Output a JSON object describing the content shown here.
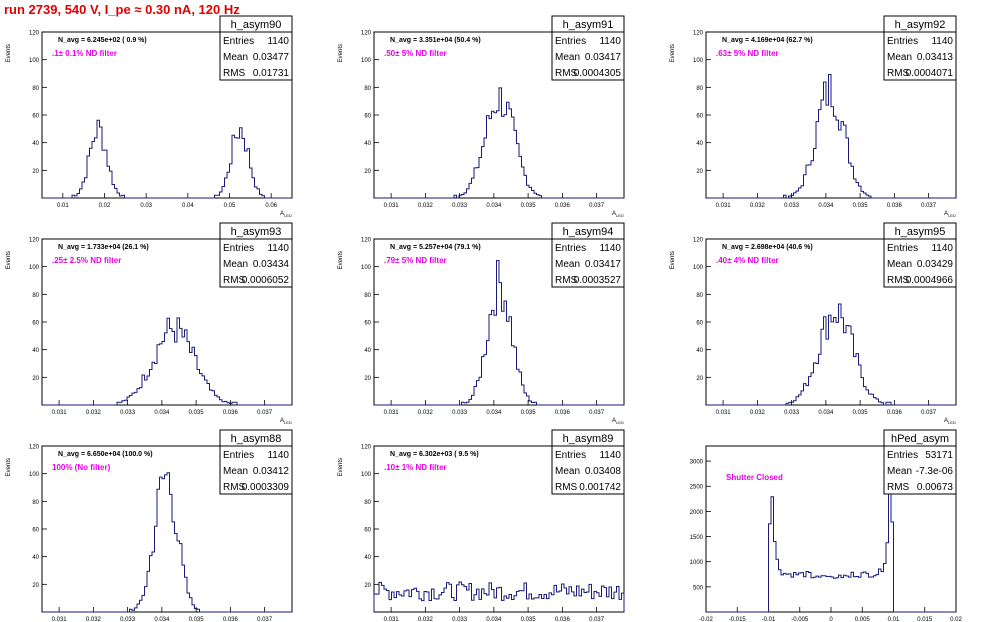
{
  "canvas_title": "run 2739,   540 V, I_pe ≈ 0.30 nA, 120 Hz",
  "stats_labels": {
    "entries": "Entries",
    "mean": "Mean",
    "rms": "RMS"
  },
  "colors": {
    "hist": "#1a1a7a",
    "annotation": "#e600e6",
    "title": "#e00000"
  },
  "chart_data": [
    {
      "type": "histogram",
      "name": "h_asym90",
      "navg": "N_avg = 6.245e+02 ( 0.9 %)",
      "filter": ".1± 0.1% ND filter",
      "stats": {
        "entries": "1140",
        "mean": "0.03477",
        "rms": "0.01731"
      },
      "ylabel": "Events",
      "xlabel": "A_LED",
      "xlim": [
        0.005,
        0.065
      ],
      "ylim": [
        0,
        120
      ],
      "xticks": [
        0.01,
        0.02,
        0.03,
        0.04,
        0.05,
        0.06
      ],
      "xticklabels": [
        "0.01",
        "0.02",
        "0.03",
        "0.04",
        "0.05",
        "0.06"
      ],
      "yticks": [
        20,
        40,
        60,
        80,
        100,
        120
      ],
      "peaks": [
        {
          "mean": 0.0185,
          "sigma": 0.0021,
          "height": 50
        },
        {
          "mean": 0.0525,
          "sigma": 0.0021,
          "height": 50
        }
      ]
    },
    {
      "type": "histogram",
      "name": "h_asym91",
      "navg": "N_avg = 3.351e+04 (50.4 %)",
      "filter": ".50± 5% ND filter",
      "stats": {
        "entries": "1140",
        "mean": "0.03417",
        "rms": "0.0004305"
      },
      "ylabel": "Events",
      "xlabel": "A_LED",
      "xlim": [
        0.0305,
        0.0378
      ],
      "ylim": [
        0,
        120
      ],
      "xticks": [
        0.031,
        0.032,
        0.033,
        0.034,
        0.035,
        0.036,
        0.037
      ],
      "xticklabels": [
        "0.031",
        "0.032",
        "0.033",
        "0.034",
        "0.035",
        "0.036",
        "0.037"
      ],
      "yticks": [
        20,
        40,
        60,
        80,
        100,
        120
      ],
      "peaks": [
        {
          "mean": 0.03417,
          "sigma": 0.00043,
          "height": 72
        }
      ]
    },
    {
      "type": "histogram",
      "name": "h_asym92",
      "navg": "N_avg = 4.169e+04 (62.7 %)",
      "filter": ".63± 5% ND filter",
      "stats": {
        "entries": "1140",
        "mean": "0.03413",
        "rms": "0.0004071"
      },
      "ylabel": "Events",
      "xlabel": "A_LED",
      "xlim": [
        0.0305,
        0.0378
      ],
      "ylim": [
        0,
        120
      ],
      "xticks": [
        0.031,
        0.032,
        0.033,
        0.034,
        0.035,
        0.036,
        0.037
      ],
      "xticklabels": [
        "0.031",
        "0.032",
        "0.033",
        "0.034",
        "0.035",
        "0.036",
        "0.037"
      ],
      "yticks": [
        20,
        40,
        60,
        80,
        100,
        120
      ],
      "peaks": [
        {
          "mean": 0.03413,
          "sigma": 0.00041,
          "height": 78
        }
      ]
    },
    {
      "type": "histogram",
      "name": "h_asym93",
      "navg": "N_avg = 1.733e+04 (26.1 %)",
      "filter": ".25± 2.5% ND filter",
      "stats": {
        "entries": "1140",
        "mean": "0.03434",
        "rms": "0.0006052"
      },
      "ylabel": "Events",
      "xlabel": "A_LED",
      "xlim": [
        0.0305,
        0.0378
      ],
      "ylim": [
        0,
        120
      ],
      "xticks": [
        0.031,
        0.032,
        0.033,
        0.034,
        0.035,
        0.036,
        0.037
      ],
      "xticklabels": [
        "0.031",
        "0.032",
        "0.033",
        "0.034",
        "0.035",
        "0.036",
        "0.037"
      ],
      "yticks": [
        20,
        40,
        60,
        80,
        100,
        120
      ],
      "peaks": [
        {
          "mean": 0.03434,
          "sigma": 0.0006,
          "height": 55
        }
      ]
    },
    {
      "type": "histogram",
      "name": "h_asym94",
      "navg": "N_avg = 5.257e+04 (79.1 %)",
      "filter": ".79± 5% ND filter",
      "stats": {
        "entries": "1140",
        "mean": "0.03417",
        "rms": "0.0003527"
      },
      "ylabel": "Events",
      "xlabel": "A_LED",
      "xlim": [
        0.0305,
        0.0378
      ],
      "ylim": [
        0,
        120
      ],
      "xticks": [
        0.031,
        0.032,
        0.033,
        0.034,
        0.035,
        0.036,
        0.037
      ],
      "xticklabels": [
        "0.031",
        "0.032",
        "0.033",
        "0.034",
        "0.035",
        "0.036",
        "0.037"
      ],
      "yticks": [
        20,
        40,
        60,
        80,
        100,
        120
      ],
      "peaks": [
        {
          "mean": 0.03417,
          "sigma": 0.00035,
          "height": 88
        }
      ]
    },
    {
      "type": "histogram",
      "name": "h_asym95",
      "navg": "N_avg = 2.698e+04 (40.6 %)",
      "filter": ".40± 4% ND filter",
      "stats": {
        "entries": "1140",
        "mean": "0.03429",
        "rms": "0.0004966"
      },
      "ylabel": "Events",
      "xlabel": "A_LED",
      "xlim": [
        0.0305,
        0.0378
      ],
      "ylim": [
        0,
        120
      ],
      "xticks": [
        0.031,
        0.032,
        0.033,
        0.034,
        0.035,
        0.036,
        0.037
      ],
      "xticklabels": [
        "0.031",
        "0.032",
        "0.033",
        "0.034",
        "0.035",
        "0.036",
        "0.037"
      ],
      "yticks": [
        20,
        40,
        60,
        80,
        100,
        120
      ],
      "peaks": [
        {
          "mean": 0.03429,
          "sigma": 0.0005,
          "height": 68
        }
      ]
    },
    {
      "type": "histogram",
      "name": "h_asym88",
      "navg": "N_avg = 6.650e+04 (100.0 %)",
      "filter": "100% (No filter)",
      "stats": {
        "entries": "1140",
        "mean": "0.03412",
        "rms": "0.0003309"
      },
      "ylabel": "Events",
      "xlabel": "A_LED",
      "xlim": [
        0.0305,
        0.0378
      ],
      "ylim": [
        0,
        120
      ],
      "xticks": [
        0.031,
        0.032,
        0.033,
        0.034,
        0.035,
        0.036,
        0.037
      ],
      "xticklabels": [
        "0.031",
        "0.032",
        "0.033",
        "0.034",
        "0.035",
        "0.036",
        "0.037"
      ],
      "yticks": [
        20,
        40,
        60,
        80,
        100,
        120
      ],
      "peaks": [
        {
          "mean": 0.03412,
          "sigma": 0.00033,
          "height": 98
        }
      ]
    },
    {
      "type": "histogram",
      "name": "h_asym89",
      "navg": "N_avg = 6.302e+03 ( 9.5 %)",
      "filter": ".10± 1% ND filter",
      "stats": {
        "entries": "1140",
        "mean": "0.03408",
        "rms": "0.001742"
      },
      "ylabel": "Events",
      "xlabel": "A_LED",
      "xlim": [
        0.0305,
        0.0378
      ],
      "ylim": [
        0,
        120
      ],
      "xticks": [
        0.031,
        0.032,
        0.033,
        0.034,
        0.035,
        0.036,
        0.037
      ],
      "xticklabels": [
        "0.031",
        "0.032",
        "0.033",
        "0.034",
        "0.035",
        "0.036",
        "0.037"
      ],
      "yticks": [
        20,
        40,
        60,
        80,
        100,
        120
      ],
      "flat": {
        "level": 15,
        "from": 0.0305,
        "to": 0.0378
      }
    },
    {
      "type": "histogram",
      "name": "hPed_asym",
      "navg": "",
      "filter": "Shutter Closed",
      "stats": {
        "entries": "53171",
        "mean": "-7.3e-06",
        "rms": "0.00673"
      },
      "ylabel": "",
      "xlabel": "",
      "xlim": [
        -0.02,
        0.02
      ],
      "ylim": [
        0,
        3300
      ],
      "xticks": [
        -0.02,
        -0.015,
        -0.01,
        -0.005,
        0,
        0.005,
        0.01,
        0.015,
        0.02
      ],
      "xticklabels": [
        "-0.02",
        "-0.015",
        "-0.01",
        "-0.005",
        "0",
        "0.005",
        "0.01",
        "0.015",
        "0.02"
      ],
      "yticks": [
        500,
        1000,
        1500,
        2000,
        2500,
        3000
      ],
      "pedestal": {
        "min": -0.0095,
        "max": 0.0095,
        "edge_height": 2750,
        "floor": 750,
        "mid_height": 700
      }
    }
  ]
}
